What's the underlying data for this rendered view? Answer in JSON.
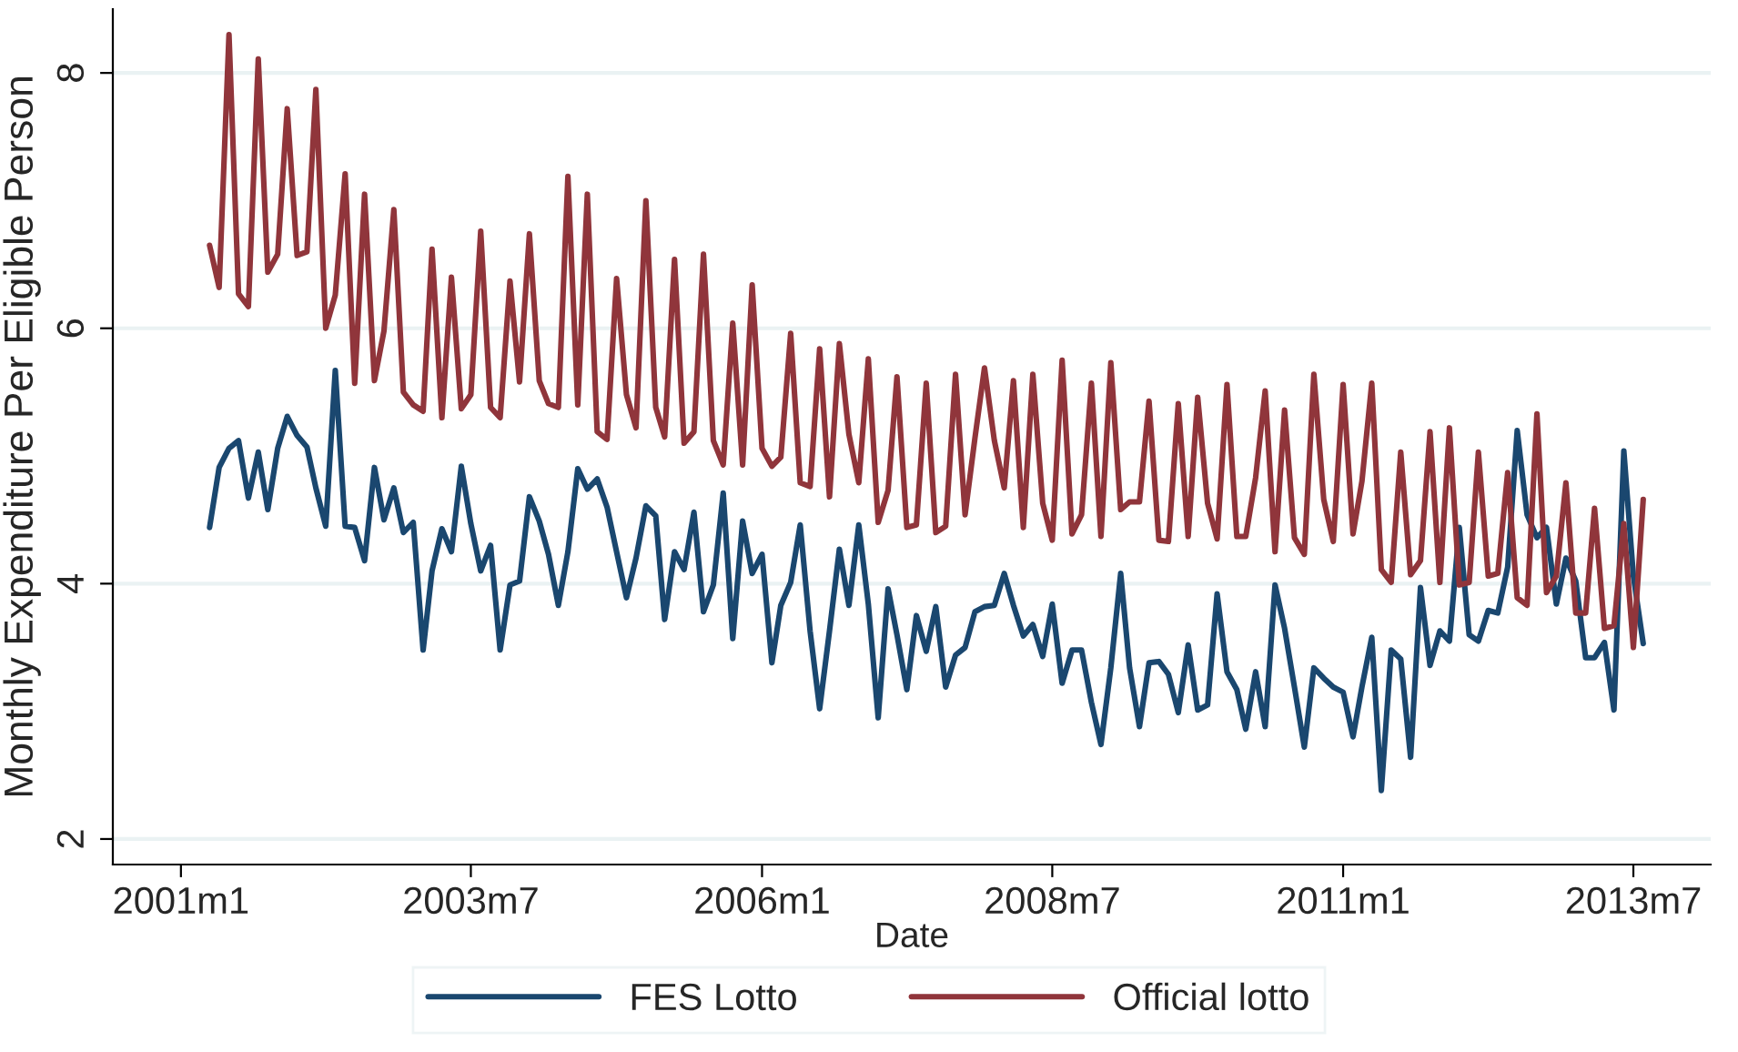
{
  "chart_data": {
    "type": "line",
    "xlabel": "Date",
    "ylabel": "Monthly Expenditure Per Eligible Person",
    "x": [
      "2001-04",
      "2001-05",
      "2001-06",
      "2001-07",
      "2001-08",
      "2001-09",
      "2001-10",
      "2001-11",
      "2001-12",
      "2002-01",
      "2002-02",
      "2002-03",
      "2002-04",
      "2002-05",
      "2002-06",
      "2002-07",
      "2002-08",
      "2002-09",
      "2002-10",
      "2002-11",
      "2002-12",
      "2003-01",
      "2003-02",
      "2003-03",
      "2003-04",
      "2003-05",
      "2003-06",
      "2003-07",
      "2003-08",
      "2003-09",
      "2003-10",
      "2003-11",
      "2003-12",
      "2004-01",
      "2004-02",
      "2004-03",
      "2004-04",
      "2004-05",
      "2004-06",
      "2004-07",
      "2004-08",
      "2004-09",
      "2004-10",
      "2004-11",
      "2004-12",
      "2005-01",
      "2005-02",
      "2005-03",
      "2005-04",
      "2005-05",
      "2005-06",
      "2005-07",
      "2005-08",
      "2005-09",
      "2005-10",
      "2005-11",
      "2005-12",
      "2006-01",
      "2006-02",
      "2006-03",
      "2006-04",
      "2006-05",
      "2006-06",
      "2006-07",
      "2006-08",
      "2006-09",
      "2006-10",
      "2006-11",
      "2006-12",
      "2007-01",
      "2007-02",
      "2007-03",
      "2007-04",
      "2007-05",
      "2007-06",
      "2007-07",
      "2007-08",
      "2007-09",
      "2007-10",
      "2007-11",
      "2007-12",
      "2008-01",
      "2008-02",
      "2008-03",
      "2008-04",
      "2008-05",
      "2008-06",
      "2008-07",
      "2008-08",
      "2008-09",
      "2008-10",
      "2008-11",
      "2008-12",
      "2009-01",
      "2009-02",
      "2009-03",
      "2009-04",
      "2009-05",
      "2009-06",
      "2009-07",
      "2009-08",
      "2009-09",
      "2009-10",
      "2009-11",
      "2009-12",
      "2010-01",
      "2010-02",
      "2010-03",
      "2010-04",
      "2010-05",
      "2010-06",
      "2010-07",
      "2010-08",
      "2010-09",
      "2010-10",
      "2010-11",
      "2010-12",
      "2011-01",
      "2011-02",
      "2011-03",
      "2011-04",
      "2011-05",
      "2011-06",
      "2011-07",
      "2011-08",
      "2011-09",
      "2011-10",
      "2011-11",
      "2011-12",
      "2012-01",
      "2012-02",
      "2012-03",
      "2012-04",
      "2012-05",
      "2012-06",
      "2012-07",
      "2012-08",
      "2012-09",
      "2012-10",
      "2012-11",
      "2012-12",
      "2013-01",
      "2013-02",
      "2013-03",
      "2013-04",
      "2013-05",
      "2013-06",
      "2013-07",
      "2013-08"
    ],
    "series": [
      {
        "name": "FES Lotto",
        "color": "#1a476f",
        "values": [
          4.44,
          4.91,
          5.06,
          5.12,
          4.67,
          5.03,
          4.58,
          5.06,
          5.31,
          5.16,
          5.07,
          4.75,
          4.45,
          5.67,
          4.45,
          4.44,
          4.18,
          4.91,
          4.5,
          4.75,
          4.4,
          4.48,
          3.48,
          4.1,
          4.43,
          4.25,
          4.92,
          4.47,
          4.1,
          4.3,
          3.48,
          3.99,
          4.02,
          4.68,
          4.49,
          4.23,
          3.83,
          4.25,
          4.9,
          4.74,
          4.82,
          4.6,
          4.25,
          3.89,
          4.2,
          4.61,
          4.53,
          3.72,
          4.25,
          4.11,
          4.56,
          3.78,
          3.99,
          4.71,
          3.57,
          4.49,
          4.08,
          4.23,
          3.38,
          3.83,
          4.01,
          4.46,
          3.63,
          3.02,
          3.63,
          4.27,
          3.83,
          4.46,
          3.84,
          2.95,
          3.96,
          3.6,
          3.17,
          3.75,
          3.47,
          3.82,
          3.19,
          3.44,
          3.5,
          3.78,
          3.82,
          3.83,
          4.08,
          3.83,
          3.59,
          3.68,
          3.43,
          3.84,
          3.22,
          3.48,
          3.48,
          3.07,
          2.74,
          3.34,
          4.08,
          3.34,
          2.88,
          3.38,
          3.39,
          3.29,
          2.99,
          3.52,
          3.01,
          3.05,
          3.92,
          3.31,
          3.17,
          2.86,
          3.31,
          2.88,
          3.99,
          3.65,
          3.19,
          2.72,
          3.34,
          3.26,
          3.19,
          3.15,
          2.8,
          3.19,
          3.58,
          2.38,
          3.48,
          3.41,
          2.64,
          3.97,
          3.36,
          3.63,
          3.55,
          4.44,
          3.6,
          3.55,
          3.79,
          3.77,
          4.13,
          5.2,
          4.54,
          4.36,
          4.44,
          3.84,
          4.2,
          4.02,
          3.42,
          3.42,
          3.54,
          3.01,
          5.04,
          4.06,
          3.53
        ]
      },
      {
        "name": "Official lotto",
        "color": "#90353b",
        "values": [
          6.65,
          6.32,
          8.3,
          6.27,
          6.17,
          8.11,
          6.44,
          6.58,
          7.72,
          6.57,
          6.6,
          7.87,
          6.0,
          6.26,
          7.21,
          5.57,
          7.05,
          5.59,
          5.98,
          6.93,
          5.5,
          5.4,
          5.35,
          6.62,
          5.3,
          6.4,
          5.37,
          5.48,
          6.76,
          5.38,
          5.3,
          6.37,
          5.58,
          6.74,
          5.59,
          5.41,
          5.38,
          7.19,
          5.4,
          7.05,
          5.19,
          5.13,
          6.39,
          5.48,
          5.22,
          7.0,
          5.38,
          5.15,
          6.54,
          5.1,
          5.19,
          6.58,
          5.12,
          4.93,
          6.04,
          4.93,
          6.34,
          5.06,
          4.92,
          4.99,
          5.96,
          4.79,
          4.76,
          5.84,
          4.68,
          5.88,
          5.17,
          4.79,
          5.76,
          4.48,
          4.73,
          5.62,
          4.44,
          4.46,
          5.57,
          4.4,
          4.45,
          5.64,
          4.54,
          5.14,
          5.69,
          5.12,
          4.75,
          5.59,
          4.44,
          5.64,
          4.63,
          4.34,
          5.75,
          4.39,
          4.54,
          5.57,
          4.37,
          5.73,
          4.58,
          4.64,
          4.64,
          5.43,
          4.34,
          4.33,
          5.41,
          4.37,
          5.46,
          4.63,
          4.35,
          5.56,
          4.37,
          4.37,
          4.83,
          5.51,
          4.25,
          5.36,
          4.36,
          4.23,
          5.64,
          4.66,
          4.33,
          5.56,
          4.39,
          4.8,
          5.57,
          4.11,
          4.01,
          5.03,
          4.07,
          4.18,
          5.19,
          4.01,
          5.22,
          3.99,
          4.01,
          5.03,
          4.06,
          4.08,
          4.87,
          3.89,
          3.83,
          5.33,
          3.93,
          4.06,
          4.79,
          3.77,
          3.77,
          4.59,
          3.65,
          3.67,
          4.47,
          3.5,
          4.66
        ]
      }
    ],
    "xlim": [
      "2000-06",
      "2014-03"
    ],
    "xticks": [
      {
        "value": "2001-01",
        "label": "2001m1"
      },
      {
        "value": "2003-07",
        "label": "2003m7"
      },
      {
        "value": "2006-01",
        "label": "2006m1"
      },
      {
        "value": "2008-07",
        "label": "2008m7"
      },
      {
        "value": "2011-01",
        "label": "2011m1"
      },
      {
        "value": "2013-07",
        "label": "2013m7"
      }
    ],
    "ylim": [
      1.8,
      8.5
    ],
    "yticks": [
      2,
      4,
      6,
      8
    ],
    "grid": "y",
    "legend": "bottom",
    "line_style": "solid",
    "marker": "none"
  }
}
